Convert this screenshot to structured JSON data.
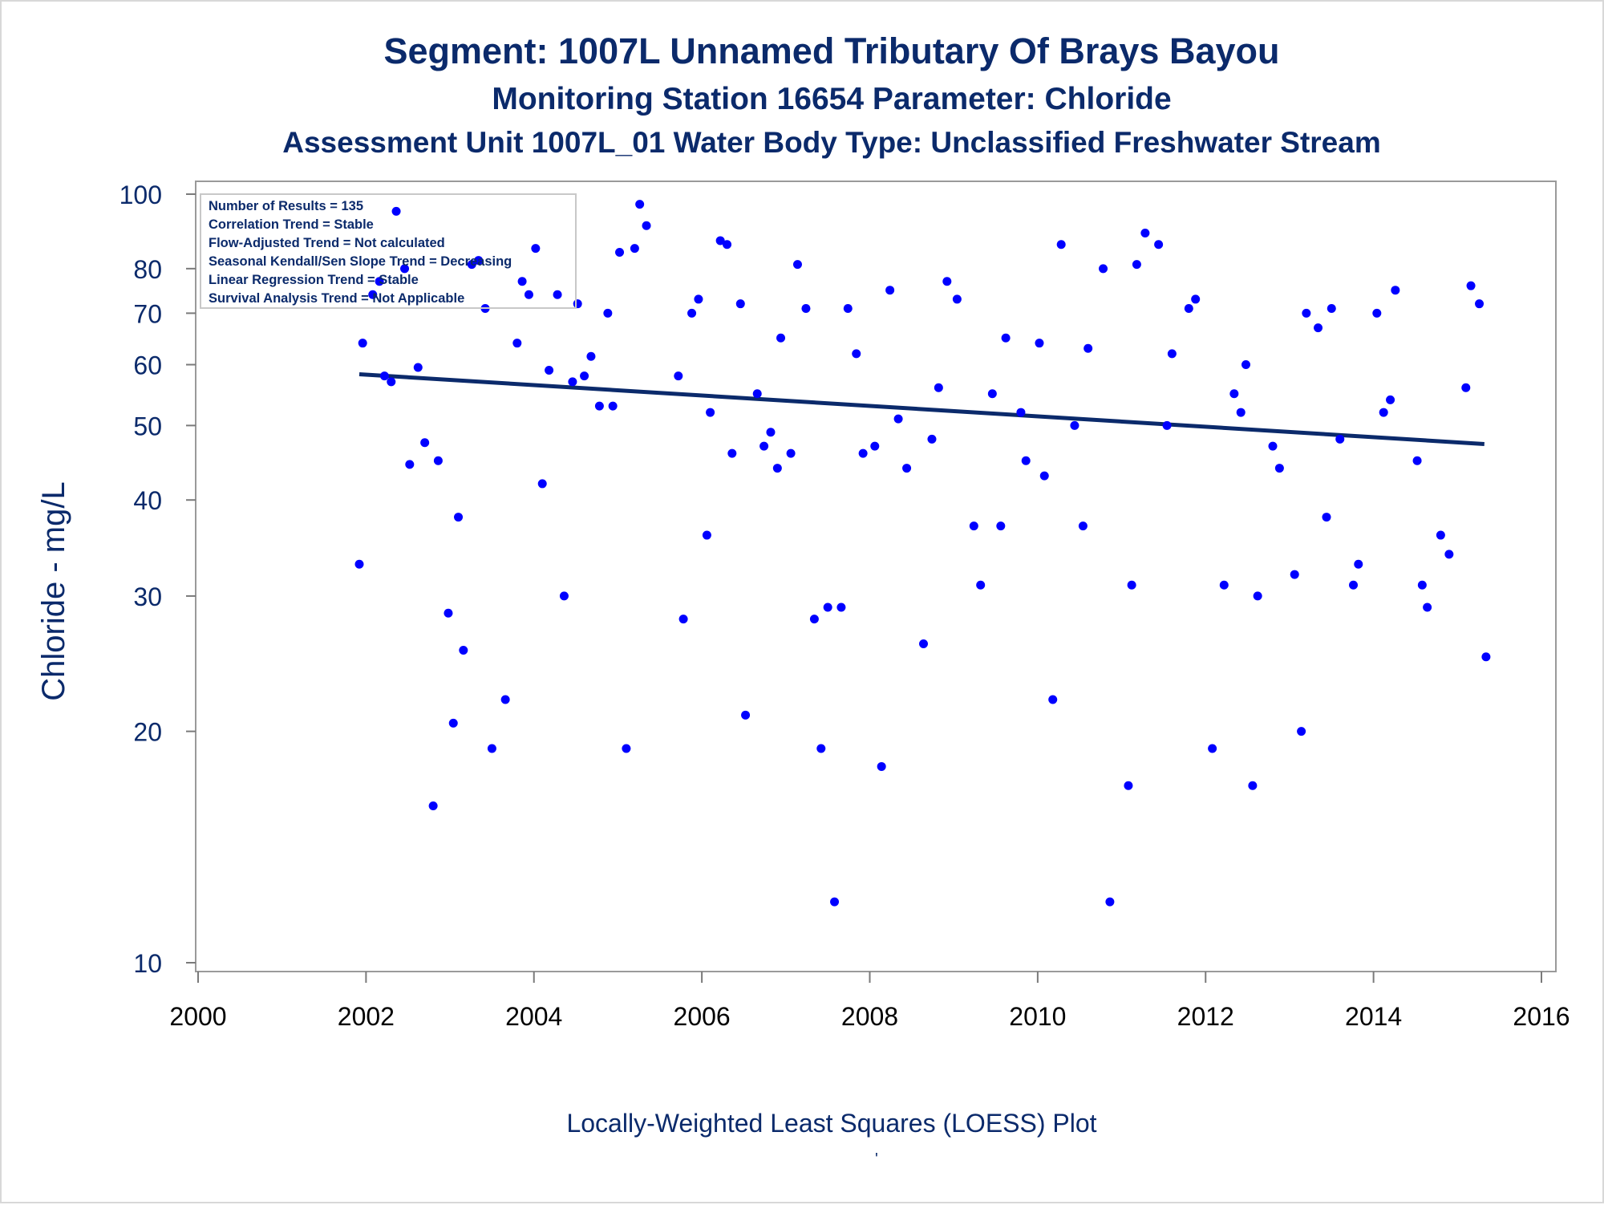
{
  "chart_data": {
    "type": "scatter",
    "title": "Segment: 1007L  Unnamed Tributary Of Brays Bayou",
    "subtitle": "Monitoring Station 16654 Parameter: Chloride",
    "subtitle2": "Assessment Unit 1007L_01   Water Body Type: Unclassified Freshwater Stream",
    "xlabel": "",
    "ylabel": "Chloride - mg/L",
    "footnote": "Locally-Weighted Least Squares (LOESS) Plot",
    "footnote_mark": "'",
    "y_scale": "log",
    "xlim": [
      2000,
      2016
    ],
    "ylim": [
      10,
      100
    ],
    "x_ticks": [
      "2000",
      "2002",
      "2004",
      "2006",
      "2008",
      "2010",
      "2012",
      "2014",
      "2016"
    ],
    "y_ticks": [
      "10",
      "20",
      "30",
      "40",
      "50",
      "60",
      "70",
      "80",
      "100"
    ],
    "grid": false,
    "legend_position": "top-left",
    "stats_box": [
      "Number of Results = 135",
      "Correlation Trend = Stable",
      "Flow-Adjusted Trend = Not calculated",
      "Seasonal Kendall/Sen Slope Trend = Decreasing",
      "Linear Regression Trend = Stable",
      "Survival Analysis Trend = Not Applicable"
    ],
    "point_color": "#0000ff",
    "trend_color": "#0b2a6b",
    "trend_line": {
      "x": [
        2001.92,
        2015.32
      ],
      "y": [
        58.3,
        47.3
      ]
    },
    "points": [
      [
        2001.92,
        33
      ],
      [
        2001.96,
        64
      ],
      [
        2002.08,
        74
      ],
      [
        2002.16,
        77
      ],
      [
        2002.22,
        58
      ],
      [
        2002.3,
        57
      ],
      [
        2002.36,
        95
      ],
      [
        2002.46,
        80
      ],
      [
        2002.52,
        44.5
      ],
      [
        2002.62,
        59.5
      ],
      [
        2002.7,
        47.5
      ],
      [
        2002.8,
        16
      ],
      [
        2002.86,
        45
      ],
      [
        2002.98,
        28.5
      ],
      [
        2003.04,
        20.5
      ],
      [
        2003.1,
        38
      ],
      [
        2003.16,
        25.5
      ],
      [
        2003.26,
        81
      ],
      [
        2003.34,
        82
      ],
      [
        2003.42,
        71
      ],
      [
        2003.5,
        19
      ],
      [
        2003.66,
        22
      ],
      [
        2003.8,
        64
      ],
      [
        2003.86,
        77
      ],
      [
        2003.94,
        74
      ],
      [
        2004.02,
        85
      ],
      [
        2004.1,
        42
      ],
      [
        2004.18,
        59
      ],
      [
        2004.28,
        74
      ],
      [
        2004.36,
        30
      ],
      [
        2004.46,
        57
      ],
      [
        2004.52,
        72
      ],
      [
        2004.6,
        58
      ],
      [
        2004.68,
        61.5
      ],
      [
        2004.78,
        53
      ],
      [
        2004.88,
        70
      ],
      [
        2004.94,
        53
      ],
      [
        2005.02,
        84
      ],
      [
        2005.1,
        19
      ],
      [
        2005.2,
        85
      ],
      [
        2005.26,
        97
      ],
      [
        2005.34,
        91
      ],
      [
        2005.72,
        58
      ],
      [
        2005.78,
        28
      ],
      [
        2005.88,
        70
      ],
      [
        2005.96,
        73
      ],
      [
        2006.06,
        36
      ],
      [
        2006.1,
        52
      ],
      [
        2006.22,
        87
      ],
      [
        2006.3,
        86
      ],
      [
        2006.36,
        46
      ],
      [
        2006.46,
        72
      ],
      [
        2006.52,
        21
      ],
      [
        2006.66,
        55
      ],
      [
        2006.74,
        47
      ],
      [
        2006.82,
        49
      ],
      [
        2006.9,
        44
      ],
      [
        2006.94,
        65
      ],
      [
        2007.06,
        46
      ],
      [
        2007.14,
        81
      ],
      [
        2007.24,
        71
      ],
      [
        2007.34,
        28
      ],
      [
        2007.42,
        19
      ],
      [
        2007.5,
        29
      ],
      [
        2007.58,
        12
      ],
      [
        2007.66,
        29
      ],
      [
        2007.74,
        71
      ],
      [
        2007.84,
        62
      ],
      [
        2007.92,
        46
      ],
      [
        2008.06,
        47
      ],
      [
        2008.14,
        18
      ],
      [
        2008.24,
        75
      ],
      [
        2008.34,
        51
      ],
      [
        2008.44,
        44
      ],
      [
        2008.64,
        26
      ],
      [
        2008.74,
        48
      ],
      [
        2008.82,
        56
      ],
      [
        2008.92,
        77
      ],
      [
        2009.04,
        73
      ],
      [
        2009.24,
        37
      ],
      [
        2009.32,
        31
      ],
      [
        2009.46,
        55
      ],
      [
        2009.56,
        37
      ],
      [
        2009.62,
        65
      ],
      [
        2009.8,
        52
      ],
      [
        2009.86,
        45
      ],
      [
        2010.02,
        64
      ],
      [
        2010.08,
        43
      ],
      [
        2010.18,
        22
      ],
      [
        2010.28,
        86
      ],
      [
        2010.44,
        50
      ],
      [
        2010.54,
        37
      ],
      [
        2010.6,
        63
      ],
      [
        2010.78,
        80
      ],
      [
        2010.86,
        12
      ],
      [
        2011.08,
        17
      ],
      [
        2011.12,
        31
      ],
      [
        2011.18,
        81
      ],
      [
        2011.28,
        89
      ],
      [
        2011.44,
        86
      ],
      [
        2011.54,
        50
      ],
      [
        2011.6,
        62
      ],
      [
        2011.8,
        71
      ],
      [
        2011.88,
        73
      ],
      [
        2012.08,
        19
      ],
      [
        2012.22,
        31
      ],
      [
        2012.34,
        55
      ],
      [
        2012.42,
        52
      ],
      [
        2012.48,
        60
      ],
      [
        2012.56,
        17
      ],
      [
        2012.62,
        30
      ],
      [
        2012.8,
        47
      ],
      [
        2012.88,
        44
      ],
      [
        2013.06,
        32
      ],
      [
        2013.14,
        20
      ],
      [
        2013.2,
        70
      ],
      [
        2013.34,
        67
      ],
      [
        2013.44,
        38
      ],
      [
        2013.5,
        71
      ],
      [
        2013.6,
        48
      ],
      [
        2013.76,
        31
      ],
      [
        2013.82,
        33
      ],
      [
        2014.04,
        70
      ],
      [
        2014.12,
        52
      ],
      [
        2014.2,
        54
      ],
      [
        2014.26,
        75
      ],
      [
        2014.52,
        45
      ],
      [
        2014.58,
        31
      ],
      [
        2014.64,
        29
      ],
      [
        2014.8,
        36
      ],
      [
        2014.9,
        34
      ],
      [
        2015.1,
        56
      ],
      [
        2015.16,
        76
      ],
      [
        2015.26,
        72
      ],
      [
        2015.34,
        25
      ]
    ]
  }
}
